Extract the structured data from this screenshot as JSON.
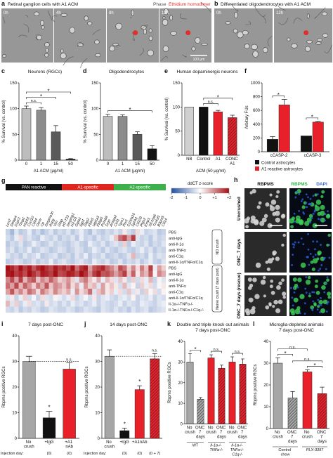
{
  "microscopy": [
    {
      "panel": "a",
      "title": "Retinal ganglion cells with A1 ACM",
      "frames": [
        "0h",
        "4h",
        "8h",
        "12h"
      ],
      "scale_bar": "100 μm",
      "channels": [
        "Phase",
        "Ethidium homodimer"
      ]
    },
    {
      "panel": "b",
      "title": "Differentiated oligodendrocytes with A1 ACM",
      "frames": [
        "0h",
        "12h"
      ]
    }
  ],
  "immunostaining": {
    "panel": "h",
    "columns": [
      [
        "RBPMS"
      ],
      [
        "RBPMS",
        "DAPI"
      ]
    ],
    "rows": [
      "Uncrushed",
      "ONC_7 days",
      "ONC_7 days (rescue)"
    ]
  },
  "chart_data": [
    {
      "type": "bar",
      "panel": "c",
      "title": "Neurons (RGCs)",
      "ylabel": "% Survival (vs. control)",
      "xlabel": "A1 ACM (μg/ml)",
      "categories": [
        "0",
        "1",
        "15",
        "50"
      ],
      "values": [
        100,
        97,
        55,
        2
      ],
      "errors": [
        5,
        5,
        12,
        1
      ],
      "colors": [
        "#bdbdbd",
        "#8c8c8c",
        "#5a5a5a",
        "#111111"
      ],
      "ylim": [
        0,
        150
      ],
      "yticks": [
        0,
        50,
        100,
        150
      ],
      "comparisons": [
        {
          "from": 0,
          "to": 1,
          "label": "n.s."
        },
        {
          "from": 0,
          "to": 2,
          "label": "*"
        },
        {
          "from": 0,
          "to": 3,
          "label": "*"
        }
      ]
    },
    {
      "type": "bar",
      "panel": "d",
      "title": "Oligodendrocytes",
      "ylabel": "% Survival (vs. control)",
      "xlabel": "A1 ACM (μg/ml)",
      "categories": [
        "0",
        "1",
        "15",
        "50"
      ],
      "values": [
        85,
        85,
        50,
        22
      ],
      "errors": [
        4,
        3,
        5,
        6
      ],
      "colors": [
        "#bdbdbd",
        "#8c8c8c",
        "#5a5a5a",
        "#111111"
      ],
      "ylim": [
        0,
        150
      ],
      "yticks": [
        0,
        50,
        100,
        150
      ],
      "comparisons": [
        {
          "from": 0,
          "to": 3,
          "label": "*"
        }
      ]
    },
    {
      "type": "bar",
      "panel": "e",
      "title": "Human dopaminergic neurons",
      "ylabel": "% Survival (vs. control)",
      "xlabel": "ACM (50 μg/ml)",
      "categories": [
        "NB",
        "Control",
        "A1",
        "CONC A1"
      ],
      "values": [
        100,
        100,
        90,
        78
      ],
      "errors": [
        0,
        0,
        3,
        5
      ],
      "colors": [
        "#d0d0d0",
        "#111111",
        "#e8202a",
        "#e8202a"
      ],
      "hatched": [
        false,
        false,
        false,
        true
      ],
      "ylim": [
        0,
        150
      ],
      "yticks": [
        0,
        50,
        100,
        150
      ],
      "comparisons": [
        {
          "from": 1,
          "to": 2,
          "label": "n.s."
        },
        {
          "from": 1,
          "to": 3,
          "label": "*"
        }
      ]
    },
    {
      "type": "bar",
      "panel": "f",
      "title": "",
      "ylabel": "Arbitary FUs",
      "categories": [
        "cCASP-2",
        "cCASP-3"
      ],
      "series": [
        {
          "name": "Control astrocytes",
          "color": "#111111",
          "values": [
            180,
            230
          ],
          "errors": [
            40,
            0
          ]
        },
        {
          "name": "A1 reactive astrocytes",
          "color": "#e8202a",
          "values": [
            680,
            430
          ],
          "errors": [
            80,
            10
          ]
        }
      ],
      "ylim": [
        0,
        1000
      ],
      "yticks": [
        0,
        200,
        400,
        600,
        800,
        1000
      ],
      "comparisons": [
        {
          "category": 0,
          "label": "*"
        },
        {
          "category": 1,
          "label": "*"
        }
      ]
    },
    {
      "type": "heatmap",
      "panel": "g",
      "colorbar_title": "ddCT z-score",
      "zlim": [
        -2,
        2
      ],
      "zticks": [
        -2,
        -1,
        0,
        {
          "value": 1,
          "label": "+1"
        },
        {
          "value": 2,
          "label": "+2"
        }
      ],
      "groups": [
        {
          "label": "PAN reactive",
          "color": "#111111",
          "genes": [
            "Lcn2",
            "Steap4",
            "S1pr3",
            "Timp1",
            "Hspb1",
            "Cxcl10",
            "Cd44",
            "Osmr",
            "Cp",
            "Serpina3n",
            "Aspg",
            "Vim",
            "Gfap"
          ]
        },
        {
          "label": "A1-specific",
          "color": "#e0251f",
          "genes": [
            "H2-T23",
            "Serping1",
            "H2-D1",
            "Ggta1",
            "Iigp1",
            "Gbp2",
            "Fbln5",
            "Ugt1a1",
            "Fkbp5",
            "Psmb8",
            "Srgn",
            "Amigo2"
          ]
        },
        {
          "label": "A2-specific",
          "color": "#3cb04a",
          "genes": [
            "Clcf1",
            "Tgm1",
            "Ptx3",
            "S100a10",
            "Sphk1",
            "Cd109",
            "Ptgs2",
            "Emp1",
            "Slc10a6",
            "Tm4sf1",
            "B3gnt5",
            "Cd14"
          ]
        }
      ],
      "row_groups": [
        {
          "label": "NO crush",
          "rows": [
            "PBS",
            "anti-IgG",
            "anti-Il-1α",
            "anti-TNFα",
            "anti-C1q",
            "anti-Il-1α/TNFα/C1q"
          ]
        },
        {
          "label": "Nerve crush (7 days post)",
          "rows": [
            "PBS",
            "anti-IgG",
            "anti-Il-1α",
            "anti-TNFα",
            "anti-C1q",
            "anti-Il-1α/TNFα/C1q",
            "Il-1α-/-TNFα-/-",
            "Il-1α-/-TNFα-/-C1q-/-"
          ]
        }
      ],
      "values": [
        [
          -0.5,
          -0.8,
          -0.3,
          -0.6,
          -0.5,
          -0.2,
          -0.6,
          -0.4,
          -0.7,
          -0.5,
          -0.3,
          -0.6,
          -0.4,
          -0.5,
          -0.3,
          -0.6,
          -0.4,
          -0.2,
          -0.5,
          -0.7,
          -0.3,
          -0.5,
          -0.6,
          -0.4,
          -0.5,
          -0.3,
          -0.5,
          0.2,
          -0.4,
          -0.6,
          0.3,
          -0.2,
          -0.5,
          -0.4,
          -0.3,
          -0.6,
          -0.5
        ],
        [
          -0.4,
          -0.6,
          -0.2,
          0.3,
          -0.5,
          -0.3,
          -0.5,
          -0.6,
          -0.2,
          -0.4,
          -0.5,
          -0.3,
          -0.6,
          -0.4,
          -0.5,
          -0.3,
          -0.6,
          -0.2,
          -0.5,
          -0.4,
          -0.6,
          -0.3,
          -0.5,
          -0.4,
          -0.2,
          0.5,
          1.2,
          1.5,
          0.8,
          1.6,
          -0.3,
          -0.5,
          -0.4,
          -0.6,
          -0.3,
          -0.5,
          -0.4
        ],
        [
          -0.6,
          -0.4,
          -0.5,
          -0.3,
          -0.6,
          -0.5,
          -0.2,
          -0.4,
          -0.6,
          -0.5,
          -0.3,
          -0.5,
          -0.4,
          -0.5,
          -0.6,
          -0.4,
          -0.3,
          -0.5,
          -0.6,
          -0.2,
          -0.4,
          -0.5,
          -0.3,
          -0.6,
          -0.4,
          -0.3,
          -0.5,
          0.4,
          -0.6,
          -0.2,
          -0.4,
          -0.5,
          -0.3,
          -0.6,
          -0.4,
          -0.5,
          -0.3
        ],
        [
          -0.5,
          -0.3,
          -0.6,
          -0.4,
          -0.5,
          -0.2,
          -0.6,
          -0.5,
          -0.3,
          -0.4,
          -0.6,
          -0.5,
          -0.3,
          -0.4,
          -0.6,
          -0.5,
          -0.3,
          -0.4,
          -0.6,
          -0.5,
          -0.2,
          -0.4,
          -0.6,
          -0.3,
          -0.5,
          -0.6,
          -0.4,
          -0.3,
          -0.5,
          -0.6,
          -0.4,
          -0.2,
          -0.5,
          -0.3,
          -0.6,
          -0.4,
          -0.5
        ],
        [
          -0.3,
          -0.5,
          -0.4,
          -0.6,
          -0.3,
          -0.5,
          -0.4,
          -0.2,
          -0.6,
          -0.5,
          -0.4,
          -0.3,
          -0.6,
          -0.5,
          -0.4,
          -0.6,
          -0.3,
          -0.5,
          -0.2,
          -0.6,
          -0.4,
          -0.5,
          -0.3,
          -0.6,
          -0.5,
          -0.4,
          -0.6,
          -0.5,
          -0.3,
          0.6,
          -0.5,
          -0.4,
          -0.6,
          -0.2,
          -0.5,
          -0.3,
          -0.4
        ],
        [
          -0.6,
          -0.5,
          -0.3,
          -0.4,
          -0.6,
          -0.5,
          -0.3,
          -0.6,
          -0.4,
          -0.5,
          -0.2,
          -0.6,
          -0.4,
          -0.3,
          -0.5,
          -0.6,
          -0.4,
          -0.3,
          -0.5,
          -0.6,
          -0.2,
          -0.4,
          -0.5,
          -0.3,
          -0.6,
          -0.5,
          -0.3,
          -0.6,
          -0.4,
          -0.5,
          -0.3,
          -0.6,
          -0.4,
          -0.2,
          -0.5,
          -0.6,
          -0.3
        ],
        [
          2,
          1.8,
          1.5,
          2,
          1.6,
          1.9,
          1.4,
          1.8,
          2,
          1.7,
          1.5,
          1.9,
          1.6,
          1.8,
          1.5,
          2,
          1.2,
          1.7,
          1.9,
          0.8,
          1.4,
          1.6,
          1.8,
          1.3,
          1.0,
          0.6,
          1.5,
          1.2,
          0.4,
          1.0,
          0.3,
          1.1,
          0.5,
          1.6,
          -0.2,
          0.8,
          0.4
        ],
        [
          1.9,
          2,
          1.6,
          1.8,
          1.5,
          2,
          1.7,
          1.4,
          1.9,
          1.8,
          1.6,
          2,
          1.5,
          1.6,
          1.9,
          1.8,
          1.5,
          2,
          1.7,
          1.0,
          1.6,
          1.9,
          1.4,
          1.5,
          1.2,
          0.8,
          1.2,
          1.6,
          0.5,
          1.3,
          0.2,
          0.9,
          0.6,
          1.4,
          0.1,
          1.0,
          0.7
        ],
        [
          1.0,
          1.5,
          0.8,
          1.6,
          0.6,
          1.2,
          1.4,
          0.5,
          1.0,
          0.7,
          1.3,
          0.9,
          0.4,
          0.6,
          0.9,
          0.4,
          -0.3,
          0.8,
          1.1,
          0.5,
          0.2,
          0.7,
          -0.2,
          0.6,
          0.3,
          -0.3,
          0.5,
          0.2,
          -0.5,
          0.4,
          -0.4,
          0.3,
          -0.2,
          0.6,
          -0.5,
          0.1,
          -0.3
        ],
        [
          1.2,
          0.8,
          1.5,
          0.6,
          1.3,
          0.9,
          0.4,
          1.1,
          0.7,
          1.4,
          0.5,
          1.0,
          0.8,
          0.5,
          1.0,
          0.3,
          0.7,
          -0.2,
          0.9,
          0.4,
          0.6,
          -0.3,
          0.8,
          0.2,
          0.5,
          0.2,
          -0.4,
          0.6,
          -0.3,
          0.1,
          -0.5,
          0.4,
          -0.2,
          0.3,
          -0.4,
          -0.1,
          0.2
        ],
        [
          0.8,
          1.4,
          0.6,
          1.0,
          0.5,
          1.2,
          0.9,
          0.3,
          1.1,
          0.7,
          0.4,
          1.0,
          0.6,
          0.4,
          0.7,
          -0.2,
          0.9,
          0.3,
          0.6,
          1.2,
          -0.3,
          0.5,
          0.8,
          0.2,
          0.4,
          -0.2,
          0.3,
          -0.4,
          0.5,
          -0.3,
          0.2,
          -0.5,
          0.4,
          -0.1,
          0.3,
          -0.4,
          0.1
        ],
        [
          -0.3,
          0.2,
          -0.5,
          -0.2,
          0.4,
          -0.4,
          -0.1,
          -0.5,
          0.3,
          -0.3,
          -0.4,
          0.1,
          -0.2,
          -0.4,
          -0.2,
          0.3,
          -0.5,
          -0.3,
          -0.1,
          -0.4,
          0.2,
          -0.5,
          -0.3,
          -0.2,
          -0.4,
          -0.5,
          -0.3,
          -0.2,
          -0.4,
          0.1,
          -0.5,
          -0.3,
          -0.4,
          -0.2,
          -0.5,
          -0.3,
          -0.4
        ],
        [
          0.6,
          -0.3,
          0.4,
          -0.5,
          -0.2,
          0.3,
          -0.4,
          -0.3,
          -0.5,
          0.2,
          -0.4,
          -0.3,
          -0.5,
          -0.3,
          -0.5,
          -0.2,
          -0.4,
          -0.3,
          -0.5,
          -0.4,
          -0.2,
          -0.5,
          -0.3,
          -0.4,
          -0.5,
          -0.4,
          -0.2,
          -0.5,
          -0.3,
          -0.4,
          -0.5,
          -0.2,
          -0.3,
          -0.4,
          -0.5,
          -0.3,
          -0.2
        ],
        [
          -0.4,
          -0.5,
          -0.3,
          -0.6,
          -0.4,
          -0.5,
          -0.3,
          -0.4,
          -0.6,
          -0.5,
          -0.3,
          -0.4,
          -0.5,
          -0.5,
          -0.3,
          -0.4,
          -0.6,
          -0.5,
          -0.3,
          -0.4,
          -0.5,
          -0.6,
          -0.3,
          -0.4,
          -0.5,
          -0.3,
          -0.5,
          -0.4,
          -0.6,
          -0.3,
          -0.5,
          -0.4,
          -0.3,
          -0.6,
          -0.5,
          -0.4,
          -0.3
        ]
      ]
    },
    {
      "type": "bar",
      "panel": "i",
      "title": "7 days post-ONC",
      "ylabel": "Rbpms positive RGCs",
      "categories": [
        "No crush",
        "+IgG",
        "+A1 nAb"
      ],
      "values": [
        30,
        8,
        27
      ],
      "errors": [
        2,
        2.5,
        2.5
      ],
      "colors": [
        "#a6a6a6",
        "#111111",
        "#e8202a"
      ],
      "ylim": [
        0,
        40
      ],
      "yticks": [
        0,
        10,
        20,
        30,
        40
      ],
      "injection_label": "Injection day:",
      "injection_days": [
        null,
        "(0)",
        "(0)"
      ],
      "reference_line": true,
      "value_annotations": [
        null,
        "*",
        "n.s."
      ]
    },
    {
      "type": "bar",
      "panel": "j",
      "title": "14 days post-ONC",
      "ylabel": "Rbpms positive RGCs",
      "categories": [
        "No crush",
        "+IgG",
        "+A1nAb",
        null
      ],
      "values": [
        32,
        3,
        19,
        31
      ],
      "errors": [
        2.5,
        1,
        1.5,
        2
      ],
      "colors": [
        "#a6a6a6",
        "#111111",
        "#e8202a",
        "#e8202a"
      ],
      "hatched": [
        false,
        false,
        false,
        true
      ],
      "ylim": [
        0,
        40
      ],
      "yticks": [
        0,
        10,
        20,
        30,
        40
      ],
      "injection_label": "Injection day:",
      "injection_days": [
        null,
        "(0)",
        "(0)",
        "(0 + 7)"
      ],
      "reference_line": true,
      "value_annotations": [
        null,
        "*",
        "*",
        "n.s."
      ]
    },
    {
      "type": "bar",
      "panel": "k",
      "title": "Double and triple knock out animals",
      "subtitle": "7 days post-ONC",
      "ylabel": "Rbpms positive RGCs",
      "categories": [
        "No crush",
        "ONC 7 days",
        "No crush",
        "ONC 7 days",
        "No crush",
        "ONC 7 days"
      ],
      "values": [
        30,
        12,
        32,
        27,
        30,
        29
      ],
      "errors": [
        4,
        0.8,
        1.5,
        1.5,
        2.5,
        2.5
      ],
      "colors": [
        "#a6a6a6",
        "#a6a6a6",
        "#e8202a",
        "#e8202a",
        "#e8202a",
        "#e8202a"
      ],
      "hatched": [
        false,
        true,
        false,
        true,
        false,
        true
      ],
      "ylim": [
        0,
        40
      ],
      "yticks": [
        0,
        10,
        20,
        30,
        40
      ],
      "group_labels": [
        "WT",
        "Il-1α-/- TNFα-/-",
        "Il-1α-/- TNFα-/- C1q-/-"
      ],
      "comparisons": [
        {
          "from": 0,
          "to": 1,
          "label": "*"
        },
        {
          "from": 2,
          "to": 3,
          "label": "n.s."
        },
        {
          "from": 4,
          "to": 5,
          "label": "n.s."
        }
      ]
    },
    {
      "type": "bar",
      "panel": "l",
      "title": "Microglia-depleted animals",
      "subtitle": "7 days post-ONC",
      "ylabel": "Rbpms positive RGCs",
      "categories": [
        "No crush",
        "ONC 7 days",
        "No crush",
        "ONC 7 days"
      ],
      "values": [
        30,
        14,
        26,
        16
      ],
      "errors": [
        2.5,
        3,
        1,
        3
      ],
      "colors": [
        "#a6a6a6",
        "#a6a6a6",
        "#e8202a",
        "#e8202a"
      ],
      "hatched": [
        false,
        true,
        false,
        true
      ],
      "ylim": [
        0,
        40
      ],
      "yticks": [
        0,
        10,
        20,
        30,
        40
      ],
      "group_labels": [
        "Control chow",
        "PLX-3397"
      ],
      "comparisons": [
        {
          "from": 0,
          "to": 1,
          "label": "*"
        },
        {
          "from": 2,
          "to": 3,
          "label": "*"
        },
        {
          "from": 1,
          "to": 3,
          "label": "n.s."
        },
        {
          "from": 0,
          "to": 2,
          "label": "n.s."
        }
      ]
    }
  ]
}
